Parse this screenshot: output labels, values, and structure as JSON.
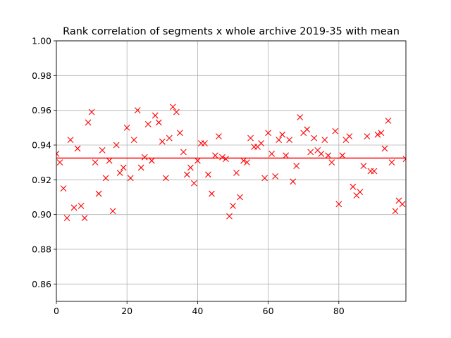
{
  "chart_data": {
    "type": "scatter",
    "title": "Rank correlation of segments x whole archive 2019-35 with mean",
    "xlabel": "",
    "ylabel": "",
    "xlim": [
      0,
      99
    ],
    "ylim": [
      0.85,
      1.0
    ],
    "xticks": [
      0,
      20,
      40,
      60,
      80
    ],
    "xtick_labels": [
      "0",
      "20",
      "40",
      "60",
      "80"
    ],
    "yticks": [
      0.86,
      0.88,
      0.9,
      0.92,
      0.94,
      0.96,
      0.98,
      1.0
    ],
    "ytick_labels": [
      "0.86",
      "0.88",
      "0.90",
      "0.92",
      "0.94",
      "0.96",
      "0.98",
      "1.00"
    ],
    "grid": true,
    "marker": "x",
    "series": [
      {
        "color": "#ff0000",
        "x": [
          0,
          1,
          2,
          3,
          4,
          5,
          6,
          7,
          8,
          9,
          10,
          11,
          12,
          13,
          14,
          15,
          16,
          17,
          18,
          19,
          20,
          21,
          22,
          23,
          24,
          25,
          26,
          27,
          28,
          29,
          30,
          31,
          32,
          33,
          34,
          35,
          36,
          37,
          38,
          39,
          40,
          41,
          42,
          43,
          44,
          45,
          46,
          47,
          48,
          49,
          50,
          51,
          52,
          53,
          54,
          55,
          56,
          57,
          58,
          59,
          60,
          61,
          62,
          63,
          64,
          65,
          66,
          67,
          68,
          69,
          70,
          71,
          72,
          73,
          74,
          75,
          76,
          77,
          78,
          79,
          80,
          81,
          82,
          83,
          84,
          85,
          86,
          87,
          88,
          89,
          90,
          91,
          92,
          93,
          94,
          95,
          96,
          97,
          98,
          99
        ],
        "y": [
          0.935,
          0.93,
          0.915,
          0.898,
          0.943,
          0.904,
          0.938,
          0.905,
          0.898,
          0.953,
          0.959,
          0.93,
          0.912,
          0.937,
          0.921,
          0.931,
          0.902,
          0.94,
          0.924,
          0.927,
          0.95,
          0.921,
          0.943,
          0.96,
          0.927,
          0.933,
          0.952,
          0.931,
          0.957,
          0.953,
          0.942,
          0.921,
          0.944,
          0.962,
          0.959,
          0.947,
          0.936,
          0.923,
          0.927,
          0.918,
          0.931,
          0.941,
          0.941,
          0.923,
          0.912,
          0.934,
          0.945,
          0.933,
          0.932,
          0.899,
          0.905,
          0.924,
          0.91,
          0.931,
          0.93,
          0.944,
          0.939,
          0.939,
          0.941,
          0.921,
          0.947,
          0.935,
          0.922,
          0.943,
          0.946,
          0.934,
          0.943,
          0.919,
          0.928,
          0.956,
          0.947,
          0.949,
          0.936,
          0.944,
          0.937,
          0.935,
          0.943,
          0.934,
          0.93,
          0.948,
          0.906,
          0.934,
          0.943,
          0.945,
          0.916,
          0.911,
          0.913,
          0.928,
          0.945,
          0.925,
          0.925,
          0.946,
          0.947,
          0.938,
          0.954,
          0.93,
          0.902,
          0.908,
          0.906,
          0.932
        ]
      }
    ],
    "mean_line": {
      "value": 0.9325,
      "color": "#ff0000"
    }
  }
}
